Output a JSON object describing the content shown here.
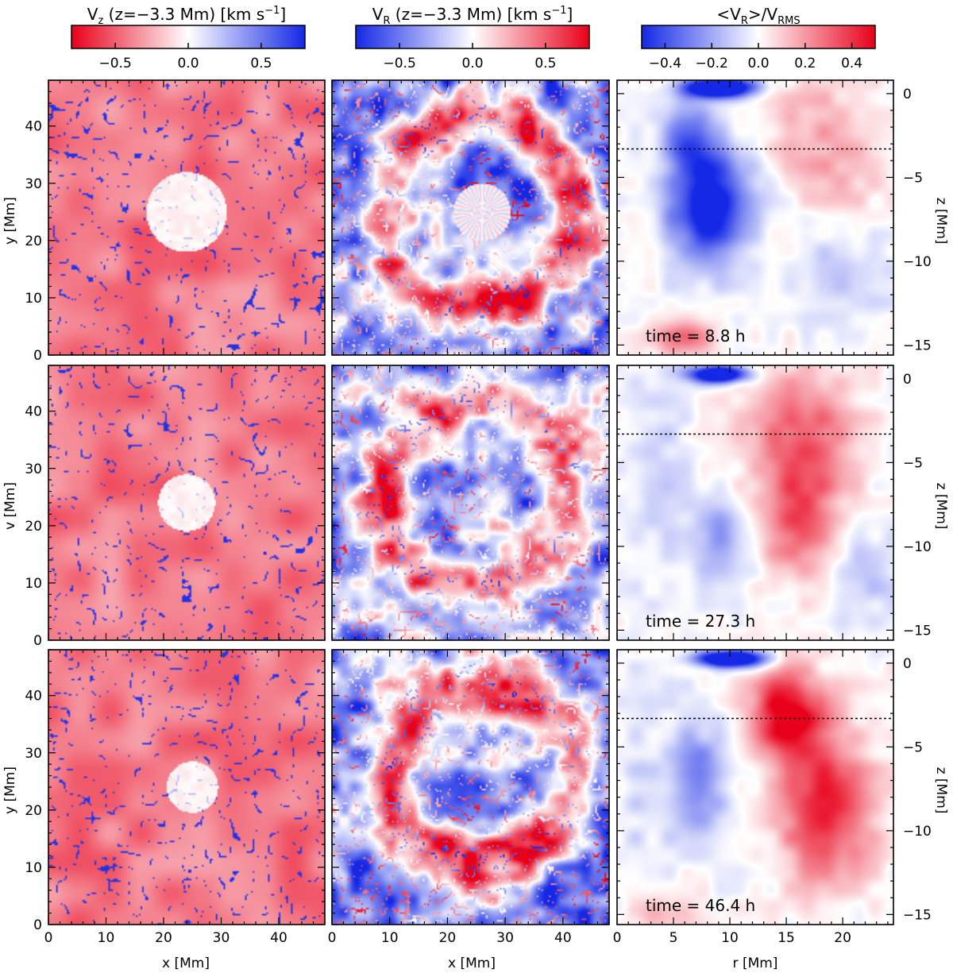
{
  "colors": {
    "red": "#e8001a",
    "white": "#ffffff",
    "blue": "#1428e6"
  },
  "chart_data": {
    "type": "heatmap",
    "colorbars": [
      {
        "title_main": "V",
        "title_sub": "z",
        "title_rest": " (z=−3.3 Mm) [km s",
        "title_sup": "−1",
        "title_end": "]",
        "direction": "red-to-blue",
        "range": [
          -0.8,
          0.8
        ],
        "ticks": [
          -0.5,
          0.0,
          0.5
        ],
        "tick_labels": [
          "−0.5",
          "0.0",
          "0.5"
        ]
      },
      {
        "title_main": "V",
        "title_sub": "R",
        "title_rest": " (z=−3.3 Mm) [km s",
        "title_sup": "−1",
        "title_end": "]",
        "direction": "blue-to-red",
        "range": [
          -0.8,
          0.8
        ],
        "ticks": [
          -0.5,
          0.0,
          0.5
        ],
        "tick_labels": [
          "−0.5",
          "0.0",
          "0.5"
        ]
      },
      {
        "title_main": "<V",
        "title_sub": "R",
        "title_rest": ">/V",
        "title_sup": "",
        "title_end": "",
        "title_sub2": "RMS",
        "direction": "blue-to-red",
        "range": [
          -0.5,
          0.5
        ],
        "ticks": [
          -0.4,
          -0.2,
          0.0,
          0.2,
          0.4
        ],
        "tick_labels": [
          "−0.4",
          "−0.2",
          "0.0",
          "0.2",
          "0.4"
        ]
      }
    ],
    "xy_axes": {
      "x_label": "x [Mm]",
      "x_range": [
        0,
        48
      ],
      "x_ticks": [
        0,
        10,
        20,
        30,
        40
      ],
      "x_tick_labels": [
        "0",
        "10",
        "20",
        "30",
        "40"
      ],
      "y_labels": [
        "y [Mm]",
        "v [Mm]",
        "y [Mm]"
      ],
      "y_range": [
        0,
        48
      ],
      "y_ticks": [
        0,
        10,
        20,
        30,
        40
      ],
      "y_tick_labels": [
        "0",
        "10",
        "20",
        "30",
        "40"
      ]
    },
    "rz_axes": {
      "x_label": "r [Mm]",
      "x_range": [
        0,
        24.5
      ],
      "x_ticks": [
        0,
        5,
        10,
        15,
        20
      ],
      "x_tick_labels": [
        "0",
        "5",
        "10",
        "15",
        "20"
      ],
      "y_label": "z [Mm]",
      "y_range": [
        -15.6,
        0.8
      ],
      "y_ticks": [
        0,
        -5,
        -10,
        -15
      ],
      "y_tick_labels": [
        "0",
        "−5",
        "−10",
        "−15"
      ],
      "dashed_line_z": -3.3
    },
    "rows": [
      {
        "time_label": "time = 8.8 h",
        "time_h": 8.8,
        "rz_blobs": [
          {
            "r": 9.0,
            "z": 0.4,
            "sr": 3.0,
            "sz": 0.6,
            "v": -0.9
          },
          {
            "r": 8.0,
            "z": -6.5,
            "sr": 3.5,
            "sz": 3.5,
            "v": -0.6
          },
          {
            "r": 6.0,
            "z": -2.5,
            "sr": 2.0,
            "sz": 2.0,
            "v": -0.3
          },
          {
            "r": 18.0,
            "z": -2.0,
            "sr": 5.0,
            "sz": 3.0,
            "v": 0.15
          },
          {
            "r": 20.0,
            "z": -5.0,
            "sr": 4.0,
            "sz": 2.0,
            "v": 0.1
          },
          {
            "r": 20.0,
            "z": -11.0,
            "sr": 5.0,
            "sz": 2.5,
            "v": -0.12
          },
          {
            "r": 6.0,
            "z": -14.5,
            "sr": 3.0,
            "sz": 1.2,
            "v": 0.25
          }
        ]
      },
      {
        "time_label": "time = 27.3 h",
        "time_h": 27.3,
        "rz_blobs": [
          {
            "r": 9.0,
            "z": 0.3,
            "sr": 2.5,
            "sz": 0.5,
            "v": -0.8
          },
          {
            "r": 16.5,
            "z": -4.0,
            "sr": 4.5,
            "sz": 4.5,
            "v": 0.35
          },
          {
            "r": 16.0,
            "z": -9.0,
            "sr": 3.0,
            "sz": 3.0,
            "v": 0.25
          },
          {
            "r": 9.0,
            "z": -9.5,
            "sr": 2.5,
            "sz": 2.5,
            "v": -0.22
          },
          {
            "r": 3.5,
            "z": -5.0,
            "sr": 3.0,
            "sz": 7.0,
            "v": -0.1
          },
          {
            "r": 22.0,
            "z": -12.0,
            "sr": 3.0,
            "sz": 3.0,
            "v": -0.12
          }
        ]
      },
      {
        "time_label": "time = 46.4 h",
        "time_h": 46.4,
        "rz_blobs": [
          {
            "r": 10.0,
            "z": 0.3,
            "sr": 3.0,
            "sz": 0.5,
            "v": -0.85
          },
          {
            "r": 15.0,
            "z": -3.0,
            "sr": 3.0,
            "sz": 2.5,
            "v": 0.55
          },
          {
            "r": 18.5,
            "z": -8.5,
            "sr": 4.0,
            "sz": 4.5,
            "v": 0.45
          },
          {
            "r": 7.0,
            "z": -7.0,
            "sr": 2.5,
            "sz": 3.5,
            "v": -0.3
          },
          {
            "r": 2.0,
            "z": -7.0,
            "sr": 2.0,
            "sz": 6.0,
            "v": -0.08
          },
          {
            "r": 4.0,
            "z": -15.0,
            "sr": 3.0,
            "sz": 1.0,
            "v": 0.12
          }
        ]
      }
    ],
    "vz_maps": [
      {
        "plume_center": [
          24,
          25
        ],
        "plume_radius": 7.0,
        "seed": 11
      },
      {
        "plume_center": [
          24,
          24
        ],
        "plume_radius": 5.0,
        "seed": 23
      },
      {
        "plume_center": [
          25,
          24
        ],
        "plume_radius": 4.5,
        "seed": 37
      }
    ],
    "vr_maps": [
      {
        "ring_radius": 17.0,
        "ring_width": 4.5,
        "center": [
          26,
          25
        ],
        "inner_star_radius": 5.0,
        "seed": 5
      },
      {
        "ring_radius": 16.0,
        "ring_width": 4.5,
        "center": [
          25,
          26
        ],
        "inner_star_radius": 0,
        "seed": 17
      },
      {
        "ring_radius": 15.5,
        "ring_width": 5.0,
        "center": [
          26,
          26
        ],
        "inner_star_radius": 0,
        "seed": 29
      }
    ]
  }
}
